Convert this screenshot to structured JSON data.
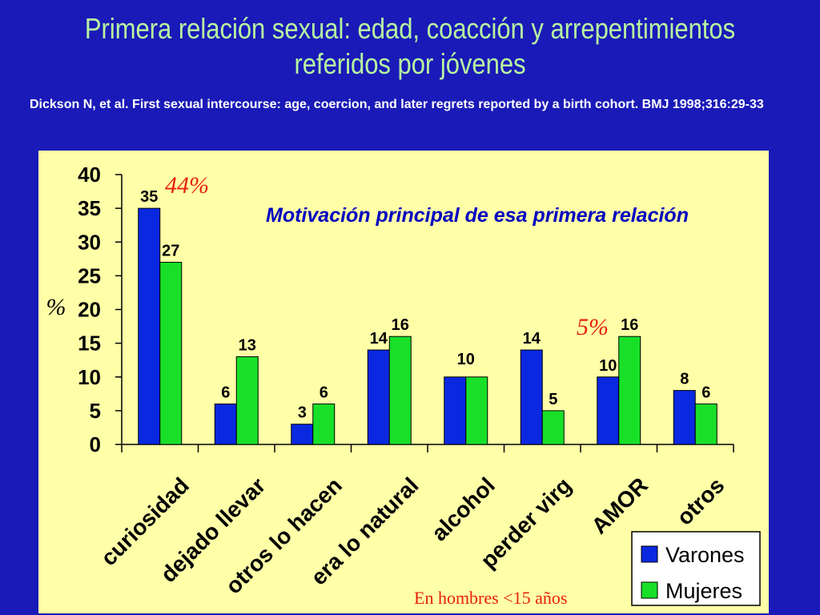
{
  "slide": {
    "title_line1": "Primera relación sexual: edad, coacción y arrepentimientos",
    "title_line2": "referidos por jóvenes",
    "citation": "Dickson N, et al. First sexual intercourse: age, coercion, and later regrets reported by a birth cohort. BMJ 1998;316:29-33"
  },
  "colors": {
    "background": "#1a1ab8",
    "panel": "#ffffa8",
    "varones": "#0a28e0",
    "mujeres": "#18e028",
    "title": "#b8f5a0",
    "annotation": "#e8200a"
  },
  "chart_data": {
    "type": "bar",
    "title": "Motivación principal de esa primera relación",
    "xlabel": "",
    "ylabel": "%",
    "ylim": [
      0,
      40
    ],
    "yticks": [
      0,
      5,
      10,
      15,
      20,
      25,
      30,
      35,
      40
    ],
    "categories": [
      "curiosidad",
      "dejado llevar",
      "otros lo hacen",
      "era lo natural",
      "alcohol",
      "perder virg",
      "AMOR",
      "otros"
    ],
    "series": [
      {
        "name": "Varones",
        "values": [
          35,
          6,
          3,
          14,
          10,
          14,
          10,
          8
        ]
      },
      {
        "name": "Mujeres",
        "values": [
          27,
          13,
          6,
          16,
          10,
          5,
          16,
          6
        ]
      }
    ],
    "data_labels": {
      "Varones": [
        "35",
        "6",
        "3",
        "14",
        "",
        "14",
        "10",
        "8"
      ],
      "Mujeres": [
        "27",
        "13",
        "6",
        "16",
        "",
        "5",
        "16",
        "6"
      ],
      "shared": [
        "",
        "",
        "",
        "",
        "10",
        "",
        "",
        ""
      ]
    },
    "annotations": [
      {
        "text": "44%",
        "category": "curiosidad"
      },
      {
        "text": "5%",
        "category": "AMOR"
      }
    ],
    "footnote": "En hombres <15 años",
    "legend_placement": "bottom-right",
    "grid": false
  }
}
